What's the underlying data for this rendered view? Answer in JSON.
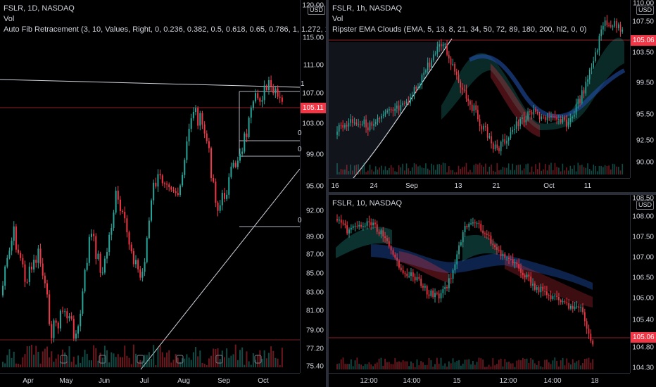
{
  "colors": {
    "up": "#26a69a",
    "down": "#f23645",
    "grid": "#131722",
    "price_tag": "#f23645"
  },
  "left": {
    "symbol": "FSLR, 1D, NASDAQ",
    "vol": "Vol",
    "indicator": "Auto Fib Retracement (3, 10, Values, Right, 0, 0.236, 0.382, 0.5, 0.618, 0.65, 0.786, 1, 1.272, 1.414, 1.618, 1.65, 2.",
    "currency": "USD",
    "price_ticks": [
      "120.00",
      "115.00",
      "111.00",
      "107.00",
      "103.00",
      "99.00",
      "95.00",
      "92.00",
      "89.00",
      "87.00",
      "85.00",
      "83.00",
      "81.00",
      "79.00",
      "77.20",
      "75.40"
    ],
    "last_price": "105.11",
    "time_ticks": [
      "Apr",
      "May",
      "Jun",
      "Jul",
      "Aug",
      "Sep",
      "Oct"
    ],
    "fib_labels": [
      "1",
      "0",
      "0",
      "0"
    ]
  },
  "top_right": {
    "symbol": "FSLR, 1h, NASDAQ",
    "vol": "Vol",
    "indicator": "Ripster EMA Clouds (EMA, 5, 13, 8, 21, 34, 50, 72, 89, 180, 200, hl2, 0, 0)",
    "currency": "USD",
    "price_ticks": [
      "110.00",
      "107.50",
      "103.50",
      "99.50",
      "95.50",
      "92.50",
      "90.00"
    ],
    "last_price": "105.06",
    "time_ticks": [
      "16",
      "24",
      "Sep",
      "13",
      "21",
      "Oct",
      "11"
    ]
  },
  "bottom_right": {
    "symbol": "FSLR, 10, NASDAQ",
    "currency": "USD",
    "price_ticks": [
      "108.50",
      "108.00",
      "107.50",
      "107.00",
      "106.50",
      "106.00",
      "105.40",
      "104.80",
      "104.30"
    ],
    "last_price": "105.06",
    "time_ticks": [
      "12:00",
      "14:00",
      "15",
      "12:00",
      "14:00",
      "18"
    ]
  }
}
